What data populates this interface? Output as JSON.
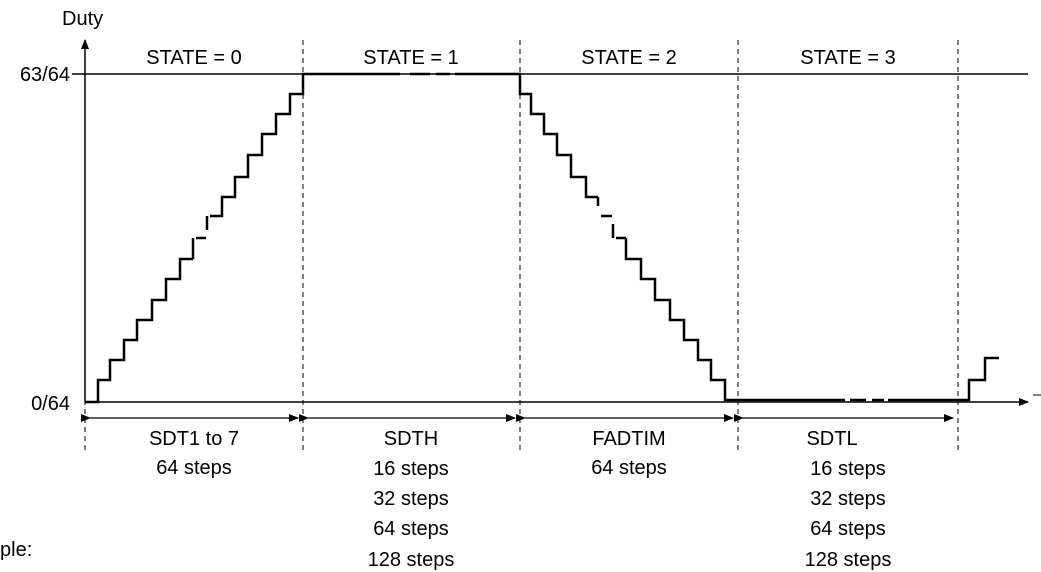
{
  "diagram": {
    "y_axis_title": "Duty",
    "y_tick_top": "63/64",
    "y_tick_bottom": "0/64",
    "cut_label": "ple:",
    "states": [
      {
        "label": "STATE = 0"
      },
      {
        "label": "STATE = 1"
      },
      {
        "label": "STATE = 2"
      },
      {
        "label": "STATE = 3"
      }
    ],
    "phases": [
      {
        "name": "SDT1 to 7",
        "steps": [
          "64 steps"
        ]
      },
      {
        "name": "SDTH",
        "steps": [
          "16 steps",
          "32 steps",
          "64 steps",
          "128 steps"
        ]
      },
      {
        "name": "FADTIM",
        "steps": [
          "64 steps"
        ]
      },
      {
        "name": "SDTL",
        "steps": [
          "16 steps",
          "32 steps",
          "64 steps",
          "128 steps"
        ]
      }
    ],
    "line_color": "#000000"
  }
}
